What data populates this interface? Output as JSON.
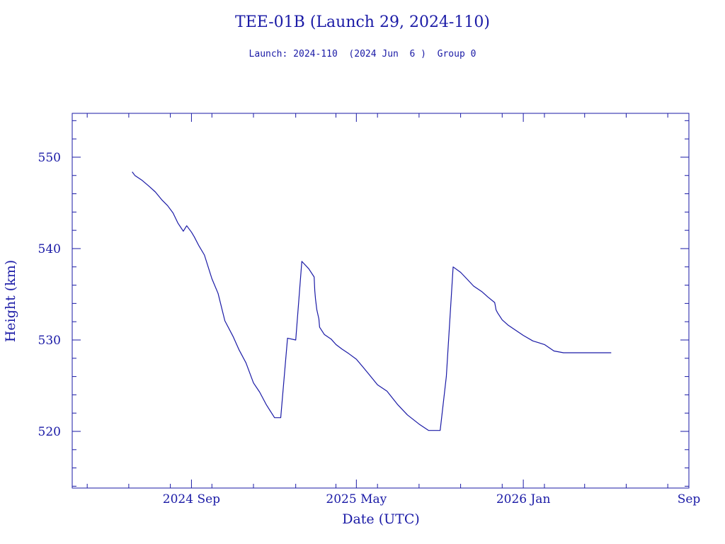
{
  "chart_data": {
    "type": "line",
    "title": "TEE-01B (Launch 29, 2024-110)",
    "subtitle": "Launch: 2024-110  (2024 Jun  6 )  Group 0",
    "xlabel": "Date (UTC)",
    "ylabel": "Height (km)",
    "x_ticks": [
      {
        "date": "2024-09-01",
        "label": "2024 Sep"
      },
      {
        "date": "2025-05-01",
        "label": "2025 May"
      },
      {
        "date": "2026-01-01",
        "label": "2026 Jan"
      },
      {
        "date": "2026-09-01",
        "label": "Sep"
      }
    ],
    "y_ticks": [
      520,
      530,
      540,
      550
    ],
    "xlim": [
      "2024-03-10",
      "2026-09-01"
    ],
    "ylim": [
      513.8,
      554.8
    ],
    "grid": false,
    "color": "#1a1aa6",
    "series": [
      {
        "x": [
          "2024-06-06",
          "2024-06-10",
          "2024-06-20",
          "2024-07-01",
          "2024-07-10",
          "2024-07-20",
          "2024-07-28",
          "2024-08-05",
          "2024-08-12",
          "2024-08-20",
          "2024-08-25",
          "2024-09-01",
          "2024-09-05",
          "2024-09-12",
          "2024-09-20",
          "2024-10-01",
          "2024-10-10",
          "2024-10-20",
          "2024-11-01",
          "2024-11-10",
          "2024-11-20",
          "2024-12-01",
          "2024-12-10",
          "2024-12-20",
          "2025-01-01",
          "2025-01-10",
          "2025-01-20",
          "2025-02-01",
          "2025-02-10",
          "2025-02-20",
          "2025-02-28",
          "2025-03-01",
          "2025-03-02",
          "2025-03-04",
          "2025-03-07",
          "2025-03-08",
          "2025-03-15",
          "2025-03-25",
          "2025-04-01",
          "2025-04-10",
          "2025-04-20",
          "2025-05-01",
          "2025-05-10",
          "2025-05-20",
          "2025-06-01",
          "2025-06-15",
          "2025-07-01",
          "2025-07-15",
          "2025-08-01",
          "2025-08-15",
          "2025-09-01",
          "2025-09-10",
          "2025-09-20",
          "2025-10-01",
          "2025-10-10",
          "2025-10-20",
          "2025-11-01",
          "2025-11-10",
          "2025-11-20",
          "2025-11-21",
          "2025-11-22",
          "2025-11-24",
          "2025-12-01",
          "2025-12-10",
          "2025-12-20",
          "2026-01-01",
          "2026-01-15",
          "2026-02-01",
          "2026-02-15",
          "2026-03-01",
          "2026-03-15",
          "2026-04-01",
          "2026-04-15",
          "2026-05-01",
          "2026-05-10"
        ],
        "y": [
          548.4,
          548.0,
          547.5,
          546.8,
          546.2,
          545.3,
          544.7,
          543.9,
          542.8,
          541.9,
          542.5,
          541.8,
          541.3,
          540.3,
          539.3,
          536.7,
          535.1,
          532.1,
          530.4,
          528.9,
          527.5,
          525.3,
          524.3,
          522.9,
          521.5,
          521.5,
          530.2,
          530.0,
          538.6,
          537.8,
          536.9,
          535.4,
          534.5,
          533.3,
          532.3,
          531.4,
          530.6,
          530.1,
          529.5,
          529.0,
          528.5,
          527.9,
          527.1,
          526.2,
          525.1,
          524.4,
          522.9,
          521.8,
          520.8,
          520.1,
          520.1,
          526.0,
          538.0,
          537.4,
          536.7,
          535.9,
          535.3,
          534.7,
          534.1,
          533.7,
          533.3,
          533.0,
          532.2,
          531.6,
          531.1,
          530.5,
          529.9,
          529.5,
          528.8,
          528.6,
          528.6,
          528.6,
          528.6,
          528.6,
          528.6
        ]
      }
    ]
  }
}
